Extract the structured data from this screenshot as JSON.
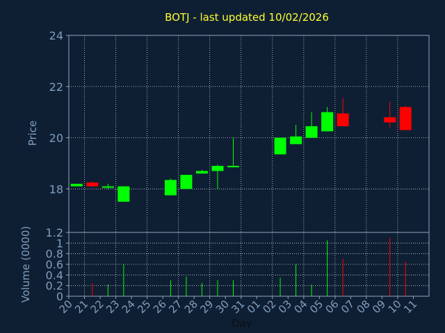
{
  "chart_data": {
    "type": "candlestick",
    "title": "BOTJ - last updated 10/02/2026",
    "xlabel": "Day",
    "price_panel": {
      "ylabel": "Price",
      "ylim": [
        16.3,
        24.0
      ],
      "yticks": [
        18,
        20,
        22,
        24
      ],
      "grid": true
    },
    "volume_panel": {
      "ylabel": "Volume (0000)",
      "ylim": [
        0,
        1.2
      ],
      "yticks": [
        0,
        0.2,
        0.4,
        0.6,
        0.8,
        1.0,
        1.2
      ],
      "ytick_labels": [
        "0",
        "0.2",
        "0.4",
        "0.6",
        "0.8",
        "1",
        "1.2"
      ],
      "grid": true
    },
    "x_ticks": [
      "20",
      "21",
      "22",
      "23",
      "24",
      "25",
      "26",
      "27",
      "28",
      "29",
      "30",
      "31",
      "01",
      "02",
      "03",
      "04",
      "05",
      "06",
      "07",
      "08",
      "09",
      "10",
      "11"
    ],
    "colors": {
      "background": "#0f1f33",
      "axis": "#8fa7bf",
      "grid": "#c8d2dc",
      "title": "#ffff33",
      "label": "#7f9fbf",
      "up": "#00ff00",
      "down": "#ff0000"
    },
    "candles": [
      {
        "day": "20",
        "open": 18.1,
        "high": 18.2,
        "low": 18.1,
        "close": 18.2,
        "volume": 0.0
      },
      {
        "day": "21",
        "open": 18.25,
        "high": 18.3,
        "low": 18.1,
        "close": 18.1,
        "volume": 0.25
      },
      {
        "day": "22",
        "open": 18.05,
        "high": 18.2,
        "low": 18.0,
        "close": 18.1,
        "volume": 0.22
      },
      {
        "day": "23",
        "open": 17.5,
        "high": 18.1,
        "low": 17.5,
        "close": 18.1,
        "volume": 0.6
      },
      {
        "day": "26",
        "open": 17.75,
        "high": 18.4,
        "low": 17.75,
        "close": 18.35,
        "volume": 0.3
      },
      {
        "day": "27",
        "open": 18.0,
        "high": 18.55,
        "low": 18.0,
        "close": 18.55,
        "volume": 0.37
      },
      {
        "day": "28",
        "open": 18.6,
        "high": 18.75,
        "low": 18.6,
        "close": 18.7,
        "volume": 0.25
      },
      {
        "day": "29",
        "open": 18.7,
        "high": 18.95,
        "low": 18.0,
        "close": 18.9,
        "volume": 0.3
      },
      {
        "day": "30",
        "open": 18.85,
        "high": 20.0,
        "low": 18.85,
        "close": 18.9,
        "volume": 0.3
      },
      {
        "day": "02",
        "open": 19.35,
        "high": 20.0,
        "low": 19.35,
        "close": 20.0,
        "volume": 0.35
      },
      {
        "day": "03",
        "open": 19.75,
        "high": 20.5,
        "low": 19.75,
        "close": 20.05,
        "volume": 0.6
      },
      {
        "day": "04",
        "open": 20.0,
        "high": 21.0,
        "low": 20.0,
        "close": 20.45,
        "volume": 0.22
      },
      {
        "day": "05",
        "open": 20.25,
        "high": 21.2,
        "low": 20.25,
        "close": 21.0,
        "volume": 1.05
      },
      {
        "day": "06",
        "open": 20.95,
        "high": 21.55,
        "low": 20.45,
        "close": 20.45,
        "volume": 0.7
      },
      {
        "day": "09",
        "open": 20.8,
        "high": 21.4,
        "low": 20.4,
        "close": 20.6,
        "volume": 1.1
      },
      {
        "day": "10",
        "open": 21.2,
        "high": 21.25,
        "low": 20.3,
        "close": 20.3,
        "volume": 0.65
      }
    ]
  }
}
